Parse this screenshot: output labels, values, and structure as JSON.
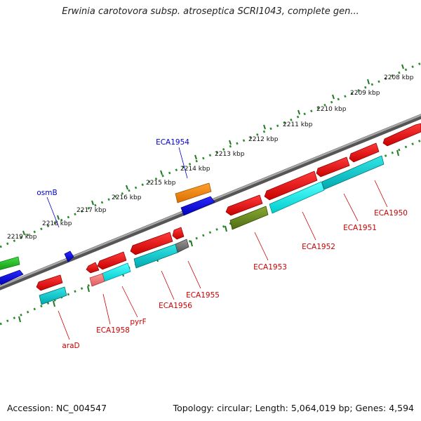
{
  "title": "Erwinia carotovora subsp. atroseptica SCRI1043, complete gen...",
  "footer": {
    "accession": "Accession: NC_004547",
    "summary": "Topology: circular; Length: 5,064,019 bp; Genes: 4,594"
  },
  "scale_labels": [
    "2208 kbp",
    "2209 kbp",
    "2210 kbp",
    "2211 kbp",
    "2212 kbp",
    "2213 kbp",
    "2214 kbp",
    "2215 kbp",
    "2216 kbp",
    "2217 kbp",
    "2218 kbp",
    "2219 kbp"
  ],
  "genes": [
    {
      "id": "ECA1954",
      "strand": "forward",
      "color": "#0000cc"
    },
    {
      "id": "osmB",
      "strand": "forward",
      "color": "#0000cc"
    },
    {
      "id": "ECA1950",
      "strand": "reverse",
      "color": "#cc0000"
    },
    {
      "id": "ECA1951",
      "strand": "reverse",
      "color": "#cc0000"
    },
    {
      "id": "ECA1952",
      "strand": "reverse",
      "color": "#cc0000"
    },
    {
      "id": "ECA1953",
      "strand": "reverse",
      "color": "#cc0000"
    },
    {
      "id": "ECA1955",
      "strand": "reverse",
      "color": "#cc0000"
    },
    {
      "id": "ECA1956",
      "strand": "reverse",
      "color": "#cc0000"
    },
    {
      "id": "pyrF",
      "strand": "reverse",
      "color": "#cc0000"
    },
    {
      "id": "ECA1958",
      "strand": "reverse",
      "color": "#cc0000"
    },
    {
      "id": "araD",
      "strand": "reverse",
      "color": "#cc0000"
    }
  ],
  "colors": {
    "backbone": "#707070",
    "scale_ticks": "#2e8b2e",
    "forward_cds": "#0000ee",
    "reverse_cds": "#ee0000",
    "orange_feature": "#ff8800",
    "cyan_feature": "#00cccc",
    "olive_feature": "#668822",
    "green_feature": "#22bb22",
    "grey_feature": "#777777",
    "pink_feature": "#ee7777"
  }
}
